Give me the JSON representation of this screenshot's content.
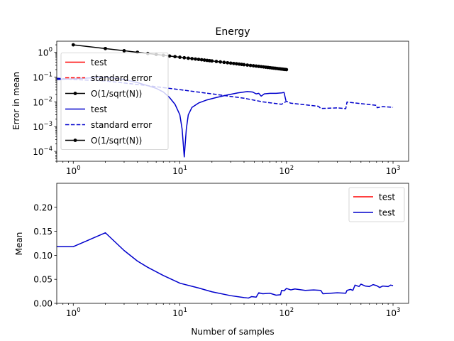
{
  "chart_data": [
    {
      "type": "line",
      "title": "Energy",
      "xlabel": "",
      "ylabel": "Error in mean",
      "xscale": "log",
      "yscale": "log",
      "xlim": [
        0.7,
        1400
      ],
      "ylim": [
        4e-05,
        2.8
      ],
      "xticks": [
        {
          "value": 1,
          "base": "10",
          "exp": "0"
        },
        {
          "value": 10,
          "base": "10",
          "exp": "1"
        },
        {
          "value": 100,
          "base": "10",
          "exp": "2"
        },
        {
          "value": 1000,
          "base": "10",
          "exp": "3"
        }
      ],
      "yticks": [
        {
          "value": 0.0001,
          "base": "10",
          "exp": "−4"
        },
        {
          "value": 0.001,
          "base": "10",
          "exp": "−3"
        },
        {
          "value": 0.01,
          "base": "10",
          "exp": "−2"
        },
        {
          "value": 0.1,
          "base": "10",
          "exp": "−1"
        },
        {
          "value": 1,
          "base": "10",
          "exp": "0"
        }
      ],
      "legend": {
        "placement": "left",
        "entries": [
          {
            "label": "test",
            "color": "#ff0000",
            "style": "solid",
            "marker": false
          },
          {
            "label": "standard error",
            "color": "#ff0000",
            "style": "dashed",
            "marker": false
          },
          {
            "label": "O(1/sqrt(N))",
            "color": "#000000",
            "style": "solid",
            "marker": true
          },
          {
            "label": "test",
            "color": "#0000cc",
            "style": "solid",
            "marker": false
          },
          {
            "label": "standard error",
            "color": "#0000cc",
            "style": "dashed",
            "marker": false
          },
          {
            "label": "O(1/sqrt(N))",
            "color": "#000000",
            "style": "solid",
            "marker": true
          }
        ]
      },
      "series": [
        {
          "name": "test",
          "color": "#0000cc",
          "style": "solid",
          "points": [
            [
              0.7,
              0.08
            ],
            [
              1,
              0.085
            ],
            [
              2,
              0.1
            ],
            [
              3,
              0.08
            ],
            [
              4,
              0.06
            ],
            [
              5,
              0.045
            ],
            [
              6,
              0.035
            ],
            [
              7,
              0.025
            ],
            [
              8,
              0.015
            ],
            [
              9,
              0.008
            ],
            [
              10,
              0.003
            ],
            [
              10.5,
              0.0008
            ],
            [
              11,
              6e-05
            ],
            [
              11.5,
              0.0008
            ],
            [
              12,
              0.003
            ],
            [
              13,
              0.006
            ],
            [
              15,
              0.009
            ],
            [
              18,
              0.012
            ],
            [
              22,
              0.015
            ],
            [
              28,
              0.019
            ],
            [
              35,
              0.023
            ],
            [
              43,
              0.026
            ],
            [
              48,
              0.025
            ],
            [
              52,
              0.021
            ],
            [
              55,
              0.022
            ],
            [
              58,
              0.017
            ],
            [
              62,
              0.021
            ],
            [
              70,
              0.022
            ],
            [
              80,
              0.022
            ],
            [
              90,
              0.023
            ],
            [
              95,
              0.024
            ],
            [
              97,
              0.016
            ],
            [
              99,
              0.011
            ]
          ]
        },
        {
          "name": "standard error",
          "color": "#0000cc",
          "style": "dashed",
          "points": [
            [
              0.7,
              0.09
            ],
            [
              1,
              0.08
            ],
            [
              2,
              0.07
            ],
            [
              5,
              0.045
            ],
            [
              10,
              0.031
            ],
            [
              20,
              0.021
            ],
            [
              40,
              0.014
            ],
            [
              60,
              0.01
            ],
            [
              90,
              0.008
            ],
            [
              100,
              0.0105
            ],
            [
              110,
              0.0088
            ],
            [
              200,
              0.0066
            ],
            [
              210,
              0.0054
            ],
            [
              300,
              0.0057
            ],
            [
              360,
              0.0053
            ],
            [
              370,
              0.0098
            ],
            [
              500,
              0.0085
            ],
            [
              700,
              0.0072
            ],
            [
              710,
              0.0058
            ],
            [
              800,
              0.0064
            ],
            [
              1000,
              0.006
            ]
          ]
        },
        {
          "name": "O(1/sqrt(N))",
          "color": "#000000",
          "style": "solid",
          "marker": true,
          "x": [
            1,
            2,
            3,
            4,
            5,
            6,
            7,
            8,
            9,
            10,
            11,
            12,
            13,
            14,
            15,
            16,
            17,
            18,
            19,
            20,
            22,
            24,
            26,
            28,
            30,
            32,
            34,
            36,
            38,
            40,
            43,
            46,
            49,
            52,
            55,
            58,
            61,
            64,
            67,
            70,
            73,
            76,
            79,
            82,
            85,
            88,
            91,
            94,
            97,
            100
          ],
          "coefficient": 2.0
        }
      ]
    },
    {
      "type": "line",
      "title": "",
      "xlabel": "Number of samples",
      "ylabel": "Mean",
      "xscale": "log",
      "yscale": "linear",
      "xlim": [
        0.7,
        1400
      ],
      "ylim": [
        0,
        0.25
      ],
      "xticks": [
        {
          "value": 1,
          "base": "10",
          "exp": "0"
        },
        {
          "value": 10,
          "base": "10",
          "exp": "1"
        },
        {
          "value": 100,
          "base": "10",
          "exp": "2"
        },
        {
          "value": 1000,
          "base": "10",
          "exp": "3"
        }
      ],
      "yticks": [
        {
          "value": 0,
          "label": "0.00"
        },
        {
          "value": 0.05,
          "label": "0.05"
        },
        {
          "value": 0.1,
          "label": "0.10"
        },
        {
          "value": 0.15,
          "label": "0.15"
        },
        {
          "value": 0.2,
          "label": "0.20"
        }
      ],
      "legend": {
        "placement": "top-right",
        "entries": [
          {
            "label": "test",
            "color": "#ff0000",
            "style": "solid",
            "marker": false
          },
          {
            "label": "test",
            "color": "#0000cc",
            "style": "solid",
            "marker": false
          }
        ]
      },
      "series": [
        {
          "name": "test",
          "color": "#0000cc",
          "style": "solid",
          "points": [
            [
              0.7,
              0.118
            ],
            [
              1,
              0.118
            ],
            [
              2,
              0.147
            ],
            [
              3,
              0.11
            ],
            [
              4,
              0.088
            ],
            [
              5,
              0.075
            ],
            [
              7,
              0.058
            ],
            [
              10,
              0.042
            ],
            [
              15,
              0.032
            ],
            [
              20,
              0.024
            ],
            [
              30,
              0.016
            ],
            [
              40,
              0.012
            ],
            [
              44,
              0.011
            ],
            [
              47,
              0.014
            ],
            [
              52,
              0.013
            ],
            [
              55,
              0.022
            ],
            [
              60,
              0.02
            ],
            [
              70,
              0.021
            ],
            [
              80,
              0.017
            ],
            [
              88,
              0.018
            ],
            [
              90,
              0.027
            ],
            [
              95,
              0.026
            ],
            [
              100,
              0.031
            ],
            [
              110,
              0.028
            ],
            [
              120,
              0.03
            ],
            [
              150,
              0.027
            ],
            [
              180,
              0.028
            ],
            [
              210,
              0.027
            ],
            [
              220,
              0.02
            ],
            [
              260,
              0.021
            ],
            [
              300,
              0.022
            ],
            [
              360,
              0.021
            ],
            [
              370,
              0.027
            ],
            [
              400,
              0.029
            ],
            [
              420,
              0.027
            ],
            [
              440,
              0.038
            ],
            [
              480,
              0.035
            ],
            [
              500,
              0.04
            ],
            [
              550,
              0.036
            ],
            [
              600,
              0.035
            ],
            [
              650,
              0.039
            ],
            [
              700,
              0.037
            ],
            [
              750,
              0.033
            ],
            [
              800,
              0.036
            ],
            [
              900,
              0.035
            ],
            [
              950,
              0.038
            ],
            [
              1000,
              0.037
            ]
          ]
        }
      ]
    }
  ]
}
